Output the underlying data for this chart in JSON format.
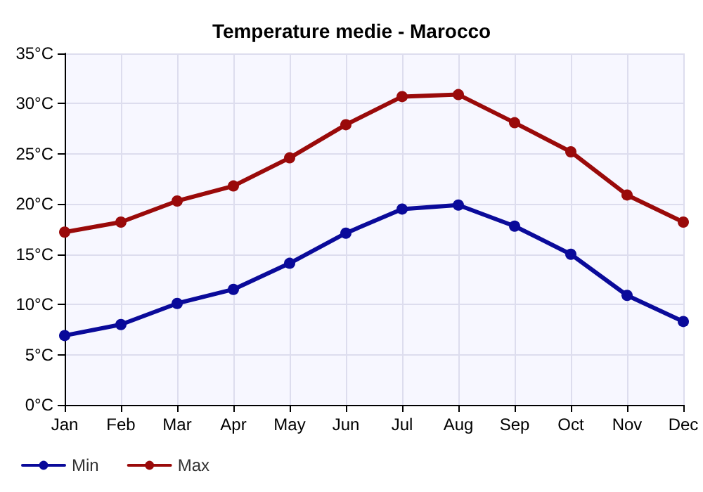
{
  "chart_data": {
    "type": "line",
    "title": "Temperature medie - Marocco",
    "categories": [
      "Jan",
      "Feb",
      "Mar",
      "Apr",
      "May",
      "Jun",
      "Jul",
      "Aug",
      "Sep",
      "Oct",
      "Nov",
      "Dec"
    ],
    "series": [
      {
        "name": "Min",
        "color": "#0a0a9a",
        "values": [
          6.9,
          8.0,
          10.1,
          11.5,
          14.1,
          17.1,
          19.5,
          19.9,
          17.8,
          15.0,
          10.9,
          8.3
        ]
      },
      {
        "name": "Max",
        "color": "#9a0a0a",
        "values": [
          17.2,
          18.2,
          20.3,
          21.8,
          24.6,
          27.9,
          30.7,
          30.9,
          28.1,
          25.2,
          20.9,
          18.2
        ]
      }
    ],
    "ylim": [
      0,
      35
    ],
    "yticks": [
      {
        "value": 0,
        "label": "0°C"
      },
      {
        "value": 5,
        "label": "5°C"
      },
      {
        "value": 10,
        "label": "10°C"
      },
      {
        "value": 15,
        "label": "15°C"
      },
      {
        "value": 20,
        "label": "20°C"
      },
      {
        "value": 25,
        "label": "25°C"
      },
      {
        "value": 30,
        "label": "30°C"
      },
      {
        "value": 35,
        "label": "35°C"
      }
    ],
    "grid": true,
    "legend": "bottom left",
    "marker": "circle",
    "line_style": "solid"
  }
}
